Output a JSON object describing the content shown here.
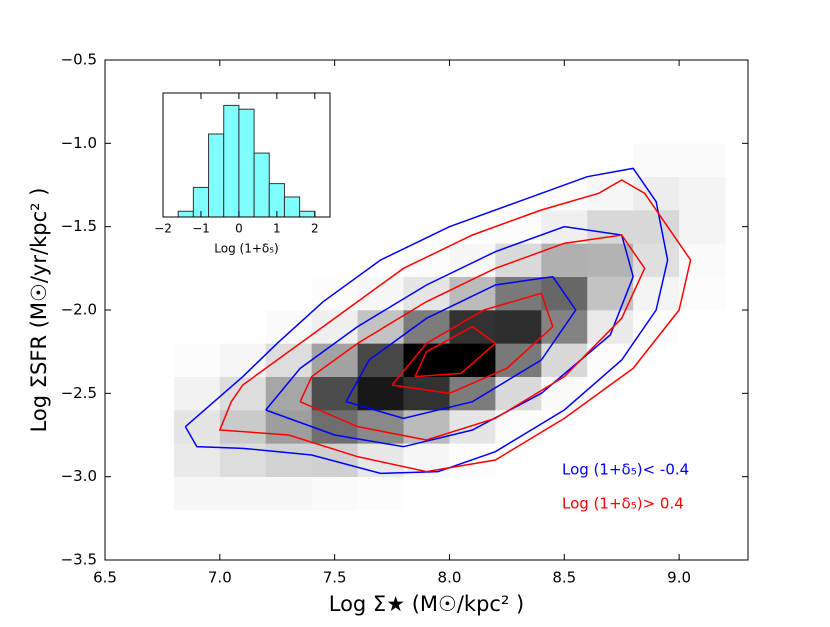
{
  "chart_data": [
    {
      "type": "contour",
      "xlabel": "Log Σ★ (M☉/kpc² )",
      "ylabel": "Log ΣSFR (M☉/yr/kpc² )",
      "xlim": [
        6.5,
        9.3
      ],
      "ylim": [
        -3.5,
        -0.5
      ],
      "xticks": [
        6.5,
        {
          "value": 7,
          "label": "7.0"
        },
        7.5,
        {
          "value": 8,
          "label": "8.0"
        },
        8.5,
        {
          "value": 9,
          "label": "9.0"
        }
      ],
      "yticks": [
        {
          "value": -3.5,
          "label": "−3.5"
        },
        {
          "value": -3,
          "label": "−3.0"
        },
        {
          "value": -2.5,
          "label": "−2.5"
        },
        {
          "value": -2,
          "label": "−2.0"
        },
        {
          "value": -1.5,
          "label": "−1.5"
        },
        {
          "value": -1,
          "label": "−1.0"
        },
        {
          "value": -0.5,
          "label": "−0.5"
        }
      ],
      "density": {
        "xbins": [
          6.8,
          7.0,
          7.2,
          7.4,
          7.6,
          7.8,
          8.0,
          8.2,
          8.4,
          8.6,
          8.8,
          9.0,
          9.2
        ],
        "ybins": [
          -3.2,
          -3.0,
          -2.8,
          -2.6,
          -2.4,
          -2.2,
          -2.0,
          -1.8,
          -1.6,
          -1.4,
          -1.2,
          -1.0
        ],
        "z": [
          [
            3,
            3,
            3,
            2,
            1,
            0,
            0,
            0,
            0,
            0,
            0,
            0
          ],
          [
            8,
            13,
            17,
            18,
            9,
            3,
            1,
            0,
            0,
            0,
            0,
            0
          ],
          [
            10,
            20,
            37,
            55,
            45,
            26,
            10,
            1,
            0,
            0,
            0,
            0
          ],
          [
            5,
            13,
            34,
            68,
            88,
            78,
            50,
            14,
            2,
            0,
            0,
            0
          ],
          [
            1,
            3,
            13,
            35,
            70,
            97,
            97,
            51,
            15,
            1,
            0,
            0
          ],
          [
            0,
            0,
            2,
            6,
            23,
            50,
            78,
            80,
            47,
            8,
            1,
            0
          ],
          [
            0,
            0,
            0,
            1,
            3,
            10,
            26,
            51,
            58,
            23,
            4,
            1
          ],
          [
            0,
            0,
            0,
            0,
            0,
            1,
            3,
            14,
            30,
            29,
            12,
            2
          ],
          [
            0,
            0,
            0,
            0,
            0,
            0,
            0,
            1,
            6,
            15,
            15,
            4
          ],
          [
            0,
            0,
            0,
            0,
            0,
            0,
            0,
            0,
            1,
            3,
            7,
            4
          ],
          [
            0,
            0,
            0,
            0,
            0,
            0,
            0,
            0,
            0,
            0,
            2,
            2
          ]
        ]
      },
      "series": [
        {
          "name": "Log (1+δ₅)< -0.4",
          "color": "#0000ff",
          "contours": [
            {
              "x": [
                6.85,
                6.9,
                7.1,
                7.4,
                7.7,
                7.95,
                8.2,
                8.5,
                8.75,
                8.9,
                8.95,
                8.9,
                8.8,
                8.6,
                8.3,
                8.0,
                7.7,
                7.45,
                7.25,
                7.1,
                6.95,
                6.85
              ],
              "y": [
                -2.7,
                -2.82,
                -2.83,
                -2.87,
                -2.98,
                -2.97,
                -2.85,
                -2.6,
                -2.3,
                -2.0,
                -1.7,
                -1.35,
                -1.15,
                -1.2,
                -1.35,
                -1.5,
                -1.7,
                -1.95,
                -2.2,
                -2.4,
                -2.58,
                -2.7
              ]
            },
            {
              "x": [
                7.2,
                7.5,
                7.8,
                8.1,
                8.4,
                8.7,
                8.8,
                8.75,
                8.5,
                8.2,
                7.9,
                7.6,
                7.35,
                7.2
              ],
              "y": [
                -2.6,
                -2.75,
                -2.82,
                -2.72,
                -2.5,
                -2.15,
                -1.8,
                -1.55,
                -1.5,
                -1.65,
                -1.85,
                -2.1,
                -2.35,
                -2.6
              ]
            },
            {
              "x": [
                7.55,
                7.8,
                8.1,
                8.4,
                8.55,
                8.45,
                8.2,
                7.9,
                7.65,
                7.55
              ],
              "y": [
                -2.55,
                -2.65,
                -2.55,
                -2.3,
                -2.0,
                -1.8,
                -1.85,
                -2.05,
                -2.3,
                -2.55
              ]
            }
          ]
        },
        {
          "name": "Log (1+δ₅)> 0.4",
          "color": "#ff0000",
          "contours": [
            {
              "x": [
                7.05,
                7.0,
                7.3,
                7.6,
                7.9,
                8.2,
                8.5,
                8.8,
                9.0,
                9.05,
                8.95,
                8.85,
                8.75,
                8.65,
                8.4,
                8.1,
                7.8,
                7.55,
                7.3,
                7.1,
                7.05
              ],
              "y": [
                -2.55,
                -2.72,
                -2.75,
                -2.88,
                -2.97,
                -2.9,
                -2.65,
                -2.35,
                -2.0,
                -1.7,
                -1.5,
                -1.3,
                -1.22,
                -1.3,
                -1.4,
                -1.55,
                -1.75,
                -2.0,
                -2.25,
                -2.45,
                -2.55
              ]
            },
            {
              "x": [
                7.35,
                7.6,
                7.9,
                8.2,
                8.5,
                8.75,
                8.85,
                8.75,
                8.5,
                8.2,
                7.9,
                7.6,
                7.4,
                7.35
              ],
              "y": [
                -2.55,
                -2.7,
                -2.78,
                -2.65,
                -2.4,
                -2.05,
                -1.75,
                -1.55,
                -1.6,
                -1.75,
                -1.95,
                -2.2,
                -2.4,
                -2.55
              ]
            },
            {
              "x": [
                7.75,
                8.0,
                8.25,
                8.45,
                8.4,
                8.15,
                7.9,
                7.75
              ],
              "y": [
                -2.45,
                -2.5,
                -2.35,
                -2.1,
                -1.9,
                -2.0,
                -2.2,
                -2.45
              ]
            },
            {
              "x": [
                7.85,
                8.05,
                8.2,
                8.1,
                7.9,
                7.85
              ],
              "y": [
                -2.4,
                -2.38,
                -2.2,
                -2.1,
                -2.25,
                -2.4
              ]
            }
          ]
        }
      ]
    },
    {
      "type": "histogram",
      "xlabel": "Log (1+δ₅)",
      "xlim": [
        -2,
        2.4
      ],
      "ylim": [
        0,
        130
      ],
      "xticks": [
        {
          "value": -2,
          "label": "−2"
        },
        {
          "value": -1,
          "label": "−1"
        },
        0,
        1,
        2
      ],
      "bins": [
        -1.6,
        -1.2,
        -0.8,
        -0.4,
        0,
        0.4,
        0.8,
        1.2,
        1.6,
        2.0
      ],
      "values": [
        6,
        31,
        87,
        117,
        113,
        67,
        35,
        21,
        6
      ],
      "color": "#80ffff"
    }
  ]
}
